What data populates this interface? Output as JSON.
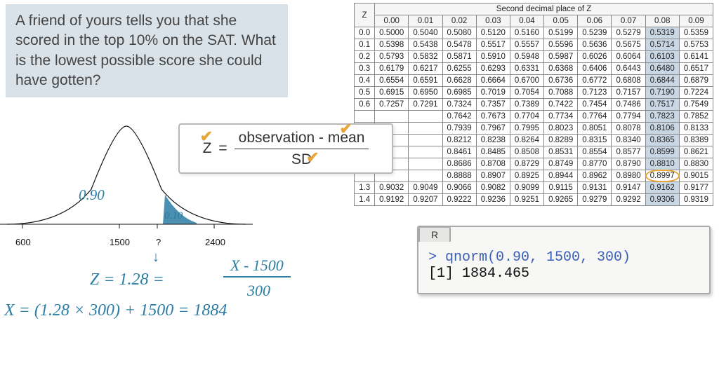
{
  "question": "A friend of yours tells you that she scored in the top 10% on the SAT. What is the lowest possible score she could have gotten?",
  "ztable": {
    "title": "Second decimal place of Z",
    "col_labels": [
      "0.00",
      "0.01",
      "0.02",
      "0.03",
      "0.04",
      "0.05",
      "0.06",
      "0.07",
      "0.08",
      "0.09"
    ],
    "row_labels": [
      "0.0",
      "0.1",
      "0.2",
      "0.3",
      "0.4",
      "0.5",
      "0.6",
      "",
      "",
      "",
      "",
      "",
      "",
      "1.3",
      "1.4"
    ],
    "rows": [
      [
        "0.5000",
        "0.5040",
        "0.5080",
        "0.5120",
        "0.5160",
        "0.5199",
        "0.5239",
        "0.5279",
        "0.5319",
        "0.5359"
      ],
      [
        "0.5398",
        "0.5438",
        "0.5478",
        "0.5517",
        "0.5557",
        "0.5596",
        "0.5636",
        "0.5675",
        "0.5714",
        "0.5753"
      ],
      [
        "0.5793",
        "0.5832",
        "0.5871",
        "0.5910",
        "0.5948",
        "0.5987",
        "0.6026",
        "0.6064",
        "0.6103",
        "0.6141"
      ],
      [
        "0.6179",
        "0.6217",
        "0.6255",
        "0.6293",
        "0.6331",
        "0.6368",
        "0.6406",
        "0.6443",
        "0.6480",
        "0.6517"
      ],
      [
        "0.6554",
        "0.6591",
        "0.6628",
        "0.6664",
        "0.6700",
        "0.6736",
        "0.6772",
        "0.6808",
        "0.6844",
        "0.6879"
      ],
      [
        "0.6915",
        "0.6950",
        "0.6985",
        "0.7019",
        "0.7054",
        "0.7088",
        "0.7123",
        "0.7157",
        "0.7190",
        "0.7224"
      ],
      [
        "0.7257",
        "0.7291",
        "0.7324",
        "0.7357",
        "0.7389",
        "0.7422",
        "0.7454",
        "0.7486",
        "0.7517",
        "0.7549"
      ],
      [
        "",
        "",
        "0.7642",
        "0.7673",
        "0.7704",
        "0.7734",
        "0.7764",
        "0.7794",
        "0.7823",
        "0.7852"
      ],
      [
        "",
        "",
        "0.7939",
        "0.7967",
        "0.7995",
        "0.8023",
        "0.8051",
        "0.8078",
        "0.8106",
        "0.8133"
      ],
      [
        "",
        "",
        "0.8212",
        "0.8238",
        "0.8264",
        "0.8289",
        "0.8315",
        "0.8340",
        "0.8365",
        "0.8389"
      ],
      [
        "",
        "",
        "0.8461",
        "0.8485",
        "0.8508",
        "0.8531",
        "0.8554",
        "0.8577",
        "0.8599",
        "0.8621"
      ],
      [
        "",
        "",
        "0.8686",
        "0.8708",
        "0.8729",
        "0.8749",
        "0.8770",
        "0.8790",
        "0.8810",
        "0.8830"
      ],
      [
        "",
        "",
        "0.8888",
        "0.8907",
        "0.8925",
        "0.8944",
        "0.8962",
        "0.8980",
        "0.8997",
        "0.9015"
      ],
      [
        "0.9032",
        "0.9049",
        "0.9066",
        "0.9082",
        "0.9099",
        "0.9115",
        "0.9131",
        "0.9147",
        "0.9162",
        "0.9177"
      ],
      [
        "0.9192",
        "0.9207",
        "0.9222",
        "0.9236",
        "0.9251",
        "0.9265",
        "0.9279",
        "0.9292",
        "0.9306",
        "0.9319"
      ]
    ],
    "highlight_col_index": 8,
    "highlight_cell": {
      "row": 12,
      "col": 8
    },
    "colors": {
      "highlight": "#7a9cb8",
      "circle": "#e8a63a"
    }
  },
  "curve": {
    "area_main": "0.90",
    "area_tail": "0.10",
    "axis": [
      "600",
      "1500",
      "?",
      "2400"
    ],
    "fill_color": "#2b7da3",
    "line_color": "#111"
  },
  "formula": {
    "z": "Z",
    "eq": "=",
    "num": "observation - mean",
    "den": "SD"
  },
  "handwritten": {
    "line1a": "Z = 1.28 =",
    "line1b": "X - 1500",
    "line1c": "300",
    "line2": "X = (1.28 × 300) + 1500 = 1884"
  },
  "rbox": {
    "tab": "R",
    "cmd": "> qnorm(0.90, 1500, 300)",
    "out": "[1] 1884.465"
  }
}
